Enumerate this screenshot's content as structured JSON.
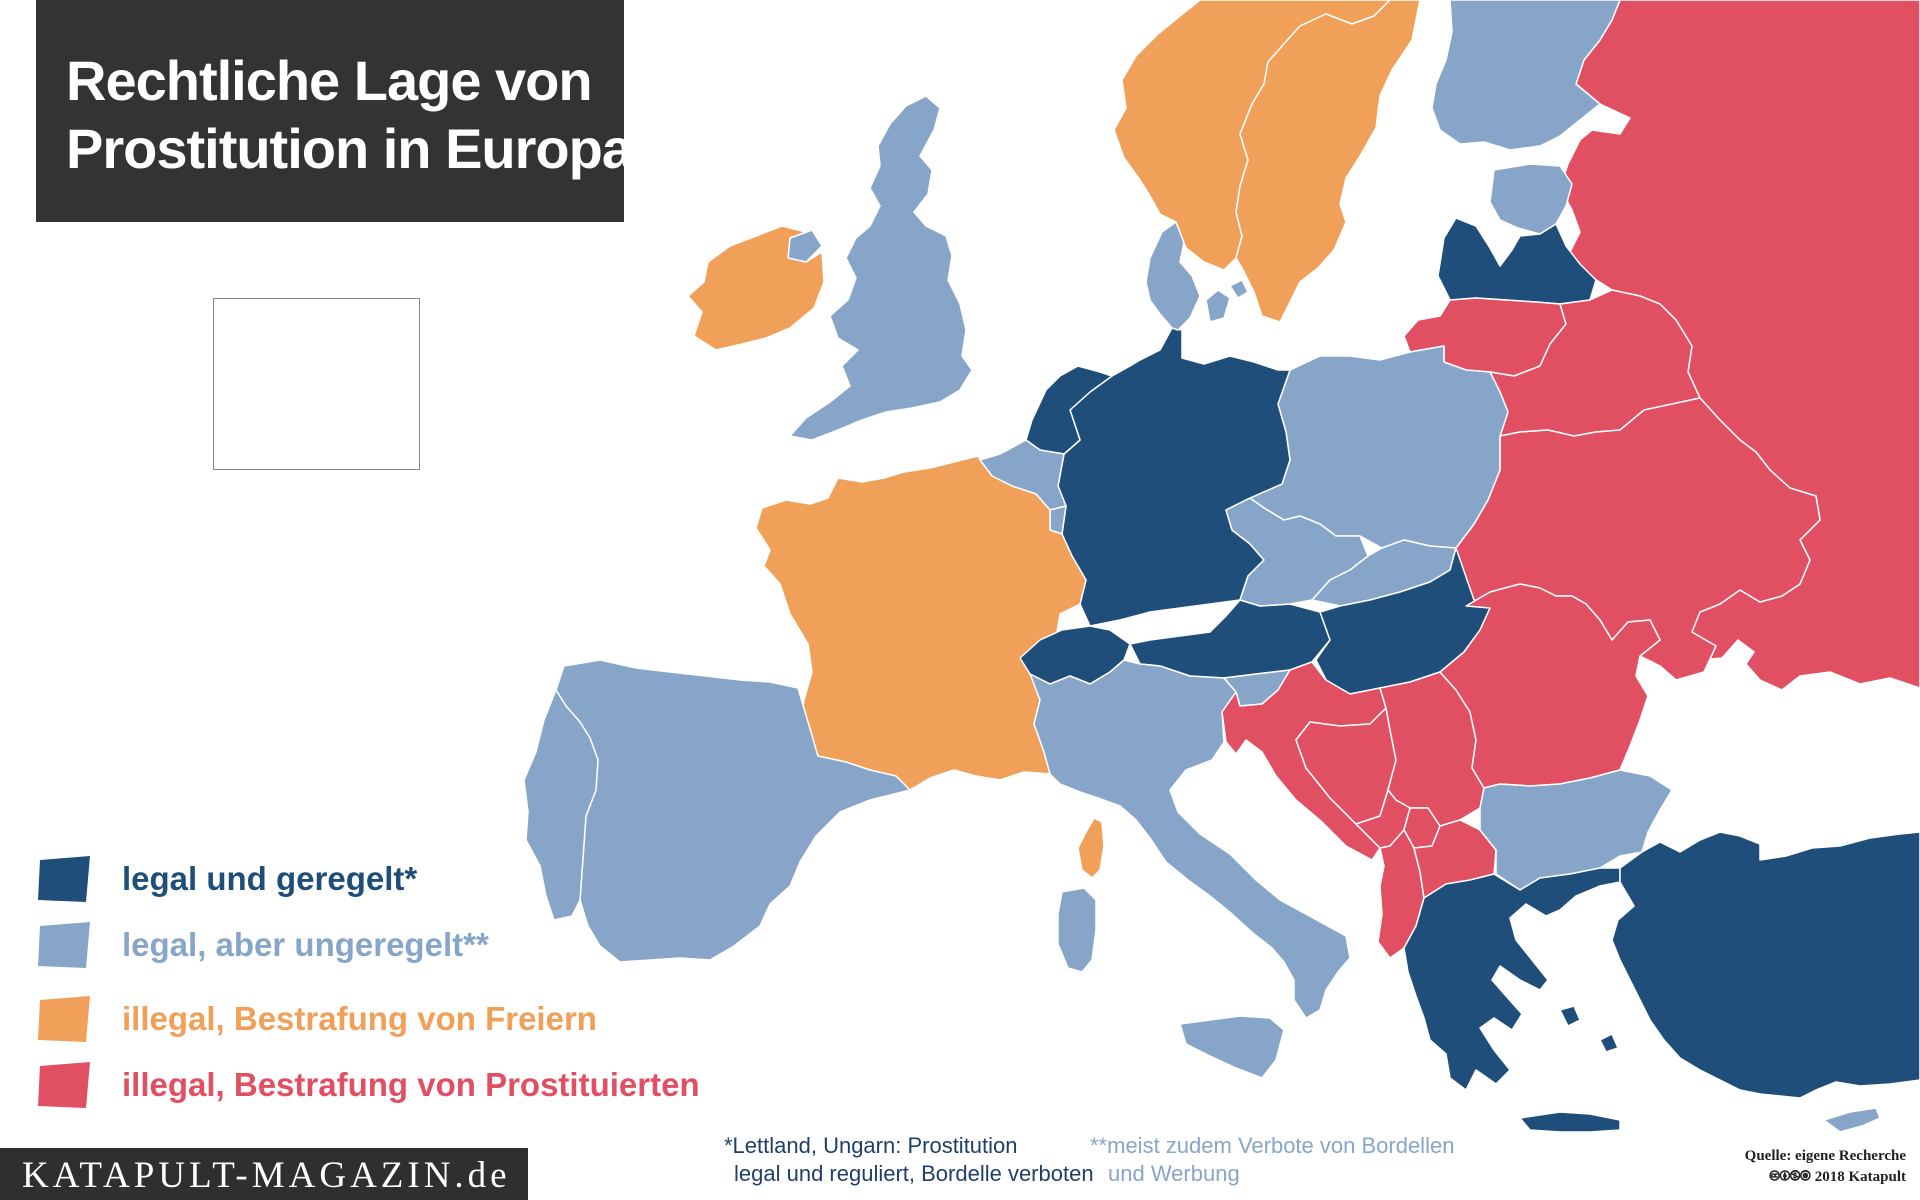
{
  "title": {
    "line1": "Rechtliche Lage von",
    "line2": "Prostitution in Europa"
  },
  "colors": {
    "legal_geregelt": "#1f4e7a",
    "legal_ungeregelt": "#87a5c8",
    "illegal_freier": "#f0a058",
    "illegal_prostituierte": "#e05062",
    "neutral": "#ffffff",
    "border": "#ffffff"
  },
  "legend": [
    {
      "label": "legal und geregelt*",
      "category": "legal_geregelt"
    },
    {
      "label": "legal, aber ungeregelt**",
      "category": "legal_ungeregelt"
    },
    {
      "label": "illegal, Bestrafung von Freiern",
      "category": "illegal_freier"
    },
    {
      "label": "illegal, Bestrafung von Prostituierten",
      "category": "illegal_prostituierte"
    }
  ],
  "countries": [
    {
      "id": "iceland",
      "category": "illegal_freier"
    },
    {
      "id": "ireland",
      "category": "illegal_freier"
    },
    {
      "id": "united-kingdom",
      "category": "legal_ungeregelt"
    },
    {
      "id": "norway",
      "category": "illegal_freier"
    },
    {
      "id": "sweden",
      "category": "illegal_freier"
    },
    {
      "id": "finland",
      "category": "legal_ungeregelt"
    },
    {
      "id": "denmark",
      "category": "legal_ungeregelt"
    },
    {
      "id": "estonia",
      "category": "legal_ungeregelt"
    },
    {
      "id": "latvia",
      "category": "legal_geregelt"
    },
    {
      "id": "lithuania",
      "category": "illegal_prostituierte"
    },
    {
      "id": "russia",
      "category": "illegal_prostituierte"
    },
    {
      "id": "belarus",
      "category": "illegal_prostituierte"
    },
    {
      "id": "ukraine",
      "category": "illegal_prostituierte"
    },
    {
      "id": "moldova",
      "category": "illegal_prostituierte"
    },
    {
      "id": "netherlands",
      "category": "legal_geregelt"
    },
    {
      "id": "belgium",
      "category": "legal_ungeregelt"
    },
    {
      "id": "luxembourg",
      "category": "legal_ungeregelt"
    },
    {
      "id": "germany",
      "category": "legal_geregelt"
    },
    {
      "id": "poland",
      "category": "legal_ungeregelt"
    },
    {
      "id": "czech-republic",
      "category": "legal_ungeregelt"
    },
    {
      "id": "slovakia",
      "category": "legal_ungeregelt"
    },
    {
      "id": "austria",
      "category": "legal_geregelt"
    },
    {
      "id": "switzerland",
      "category": "legal_geregelt"
    },
    {
      "id": "hungary",
      "category": "legal_geregelt"
    },
    {
      "id": "france",
      "category": "illegal_freier"
    },
    {
      "id": "corsica",
      "category": "illegal_freier"
    },
    {
      "id": "spain",
      "category": "legal_ungeregelt"
    },
    {
      "id": "portugal",
      "category": "legal_ungeregelt"
    },
    {
      "id": "italy",
      "category": "legal_ungeregelt"
    },
    {
      "id": "sardinia",
      "category": "legal_ungeregelt"
    },
    {
      "id": "sicily",
      "category": "legal_ungeregelt"
    },
    {
      "id": "slovenia",
      "category": "legal_ungeregelt"
    },
    {
      "id": "croatia",
      "category": "illegal_prostituierte"
    },
    {
      "id": "bosnia",
      "category": "illegal_prostituierte"
    },
    {
      "id": "serbia",
      "category": "illegal_prostituierte"
    },
    {
      "id": "montenegro",
      "category": "illegal_prostituierte"
    },
    {
      "id": "kosovo",
      "category": "illegal_prostituierte"
    },
    {
      "id": "albania",
      "category": "illegal_prostituierte"
    },
    {
      "id": "north-macedonia",
      "category": "illegal_prostituierte"
    },
    {
      "id": "romania",
      "category": "illegal_prostituierte"
    },
    {
      "id": "bulgaria",
      "category": "legal_ungeregelt"
    },
    {
      "id": "greece",
      "category": "legal_geregelt"
    },
    {
      "id": "turkey",
      "category": "legal_geregelt"
    },
    {
      "id": "cyprus",
      "category": "legal_ungeregelt"
    }
  ],
  "footnotes": {
    "note1_line1": "*Lettland, Ungarn: Prostitution",
    "note1_line2": "legal und reguliert, Bordelle verboten",
    "note2_line1": "**meist zudem Verbote von Bordellen",
    "note2_line2": "und Werbung"
  },
  "brand": "KATAPULT-MAGAZIN.de",
  "source": {
    "line1": "Quelle: eigene Recherche",
    "cc_icons": "🅭🅯🄏🄍",
    "line2": "2018 Katapult"
  }
}
